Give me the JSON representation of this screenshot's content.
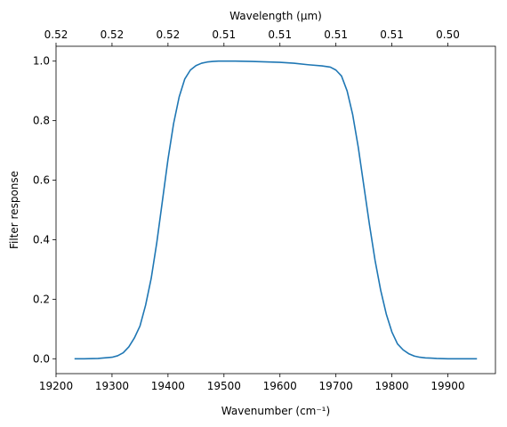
{
  "chart_data": {
    "type": "line",
    "xlabel": "Wavenumber (cm⁻¹)",
    "ylabel": "Filter response",
    "x2label": "Wavelength (μm)",
    "xlim": [
      19200,
      19985
    ],
    "ylim": [
      -0.05,
      1.05
    ],
    "x_ticks": [
      19200,
      19300,
      19400,
      19500,
      19600,
      19700,
      19800,
      19900
    ],
    "y_ticks": [
      0.0,
      0.2,
      0.4,
      0.6,
      0.8,
      1.0
    ],
    "x2_ticks": [
      {
        "wavenumber": 19200,
        "label": "0.52"
      },
      {
        "wavenumber": 19300,
        "label": "0.52"
      },
      {
        "wavenumber": 19400,
        "label": "0.52"
      },
      {
        "wavenumber": 19500,
        "label": "0.51"
      },
      {
        "wavenumber": 19600,
        "label": "0.51"
      },
      {
        "wavenumber": 19700,
        "label": "0.51"
      },
      {
        "wavenumber": 19800,
        "label": "0.51"
      },
      {
        "wavenumber": 19900,
        "label": "0.50"
      }
    ],
    "grid": false,
    "line_color": "#1f77b4",
    "series": [
      {
        "x": [
          19233,
          19250,
          19275,
          19300,
          19310,
          19320,
          19330,
          19340,
          19350,
          19360,
          19370,
          19380,
          19390,
          19400,
          19410,
          19420,
          19430,
          19440,
          19450,
          19460,
          19470,
          19480,
          19490,
          19500,
          19520,
          19550,
          19600,
          19625,
          19650,
          19675,
          19690,
          19700,
          19710,
          19720,
          19730,
          19740,
          19750,
          19760,
          19770,
          19780,
          19790,
          19800,
          19810,
          19820,
          19830,
          19840,
          19850,
          19860,
          19870,
          19880,
          19900,
          19925,
          19952
        ],
        "y": [
          0.0,
          0.0,
          0.001,
          0.005,
          0.01,
          0.02,
          0.04,
          0.07,
          0.11,
          0.18,
          0.27,
          0.39,
          0.53,
          0.67,
          0.79,
          0.88,
          0.94,
          0.97,
          0.985,
          0.993,
          0.997,
          0.999,
          1.0,
          1.0,
          1.0,
          0.999,
          0.996,
          0.993,
          0.988,
          0.984,
          0.98,
          0.97,
          0.95,
          0.9,
          0.82,
          0.71,
          0.58,
          0.45,
          0.33,
          0.23,
          0.15,
          0.09,
          0.05,
          0.03,
          0.017,
          0.009,
          0.005,
          0.003,
          0.002,
          0.001,
          0.0,
          0.0,
          0.0
        ]
      }
    ]
  }
}
